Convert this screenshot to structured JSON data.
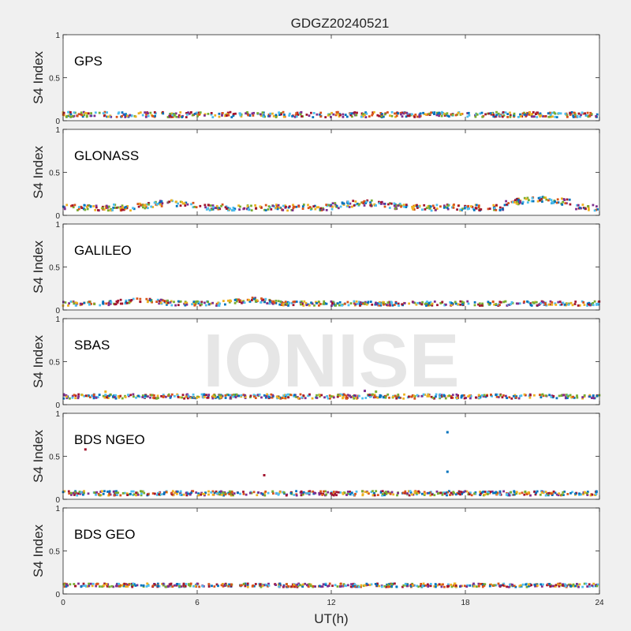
{
  "figure": {
    "title": "GDGZ20240521",
    "ylabel": "S4 Index",
    "xlabel": "UT(h)",
    "watermark": "IONISE"
  },
  "chart_data": {
    "type": "scatter",
    "x_ticks": [
      "0",
      "6",
      "12",
      "18",
      "24"
    ],
    "y_ticks": [
      "0",
      "0.5",
      "1"
    ],
    "xlim": [
      0,
      24
    ],
    "ylim": [
      0,
      1
    ],
    "series_colors": [
      "#0072bd",
      "#d95319",
      "#edb120",
      "#7e2f8e",
      "#77ac30",
      "#4dbeee",
      "#a2142f"
    ],
    "panels": [
      {
        "label": "GPS",
        "baseline": 0.07,
        "spread": 0.03
      },
      {
        "label": "GLONASS",
        "baseline": 0.09,
        "spread": 0.035,
        "bumps": [
          [
            4.8,
            0.15
          ],
          [
            13.5,
            0.15
          ],
          [
            21.3,
            0.19
          ]
        ]
      },
      {
        "label": "GALILEO",
        "baseline": 0.075,
        "spread": 0.025,
        "bumps": [
          [
            8.5,
            0.12
          ],
          [
            3.5,
            0.12
          ]
        ]
      },
      {
        "label": "SBAS",
        "baseline": 0.095,
        "spread": 0.025,
        "outliers": [
          [
            1.9,
            0.15
          ],
          [
            13.5,
            0.16
          ],
          [
            14.0,
            0.15
          ]
        ]
      },
      {
        "label": "BDS NGEO",
        "baseline": 0.07,
        "spread": 0.025,
        "outliers": [
          [
            1.0,
            0.58
          ],
          [
            9.0,
            0.28
          ],
          [
            17.2,
            0.78
          ],
          [
            17.2,
            0.32
          ]
        ]
      },
      {
        "label": "BDS GEO",
        "baseline": 0.1,
        "spread": 0.02
      }
    ]
  }
}
